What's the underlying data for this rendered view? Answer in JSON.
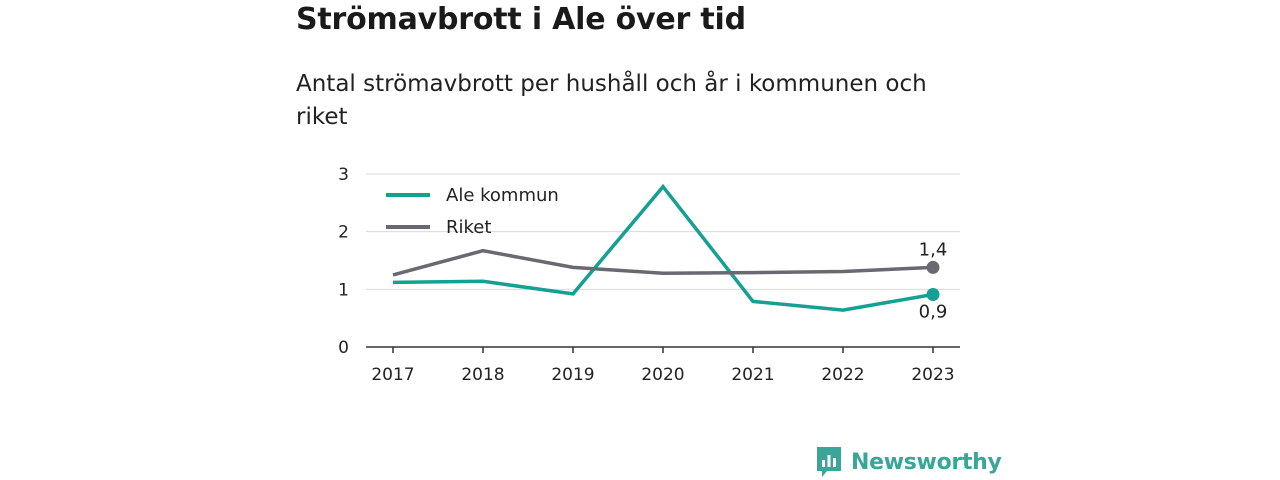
{
  "title": "Strömavbrott i Ale över tid",
  "subtitle": "Antal strömavbrott per hushåll och år i kommunen och riket",
  "brand": {
    "name": "Newsworthy",
    "icon": "bar-chart-speech-bubble-icon"
  },
  "colors": {
    "ale": "#14a092",
    "riket": "#6a6870",
    "brand": "#3aa598"
  },
  "chart_data": {
    "type": "line",
    "x": [
      "2017",
      "2018",
      "2019",
      "2020",
      "2021",
      "2022",
      "2023"
    ],
    "y_ticks": [
      "0",
      "1",
      "2",
      "3"
    ],
    "ylim": [
      0,
      3
    ],
    "grid": true,
    "legend_position": "top-left",
    "series": [
      {
        "name": "Ale kommun",
        "color": "#14a092",
        "values": [
          1.12,
          1.14,
          0.92,
          2.78,
          0.79,
          0.64,
          0.91
        ],
        "end_label": "0,9"
      },
      {
        "name": "Riket",
        "color": "#6a6870",
        "values": [
          1.25,
          1.67,
          1.38,
          1.28,
          1.29,
          1.31,
          1.38
        ],
        "end_label": "1,4"
      }
    ]
  }
}
